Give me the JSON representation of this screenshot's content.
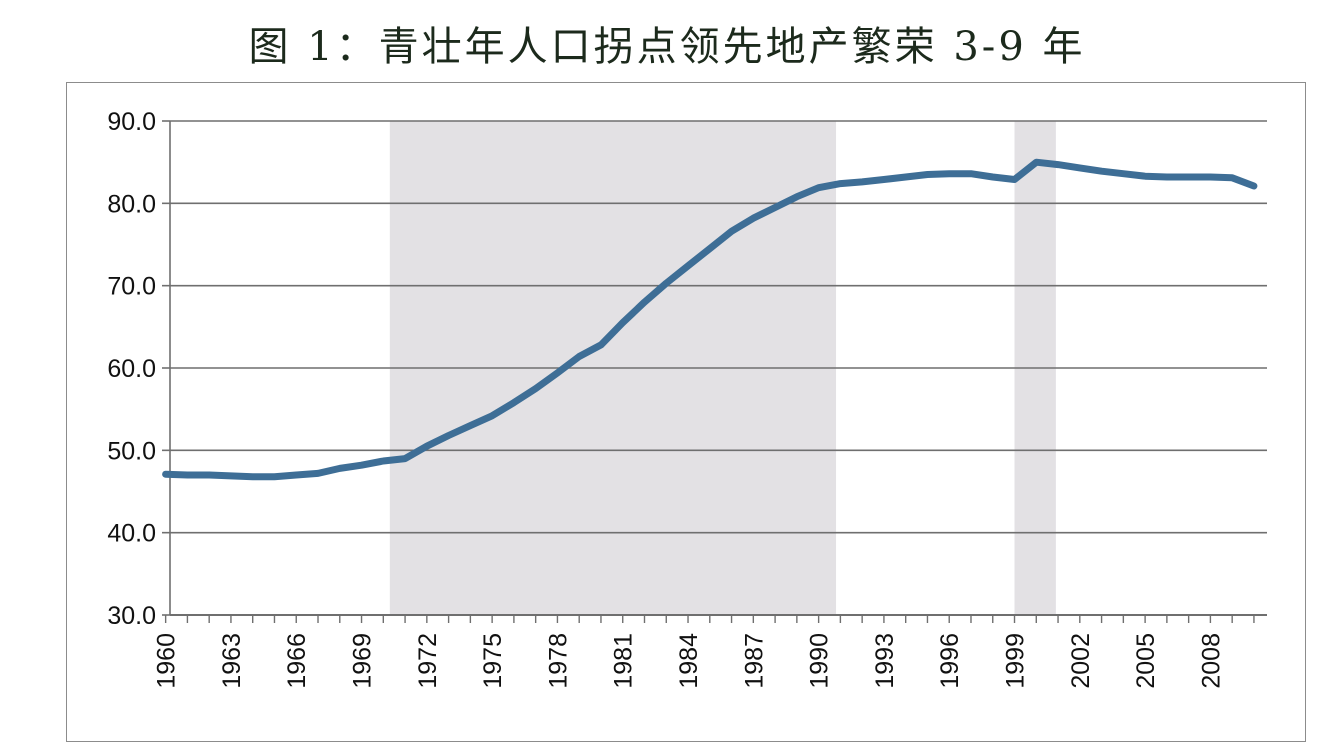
{
  "title": "图 1：青壮年人口拐点领先地产繁荣 3-9 年",
  "chart_data": {
    "type": "line",
    "title": "图 1：青壮年人口拐点领先地产繁荣 3-9 年",
    "xlabel": "",
    "ylabel": "",
    "ylim": [
      30,
      90
    ],
    "xlim": [
      1960,
      2010
    ],
    "yticks": [
      "30.0",
      "40.0",
      "50.0",
      "60.0",
      "70.0",
      "80.0",
      "90.0"
    ],
    "xticks": [
      "1960",
      "1963",
      "1966",
      "1969",
      "1972",
      "1975",
      "1978",
      "1981",
      "1984",
      "1987",
      "1990",
      "1993",
      "1996",
      "1999",
      "2002",
      "2005",
      "2008"
    ],
    "grid": "horizontal",
    "line_color": "#3e6e96",
    "shade_color": "#e3e1e4",
    "shaded_periods": [
      [
        1970.3,
        1990.8
      ],
      [
        1999.0,
        2000.9
      ]
    ],
    "series": [
      {
        "x": [
          1960,
          1961,
          1962,
          1963,
          1964,
          1965,
          1966,
          1967,
          1968,
          1969,
          1970,
          1971,
          1972,
          1973,
          1974,
          1975,
          1976,
          1977,
          1978,
          1979,
          1980,
          1981,
          1982,
          1983,
          1984,
          1985,
          1986,
          1987,
          1988,
          1989,
          1990,
          1991,
          1992,
          1993,
          1994,
          1995,
          1996,
          1997,
          1998,
          1999,
          2000,
          2001,
          2002,
          2003,
          2004,
          2005,
          2006,
          2007,
          2008,
          2009,
          2010
        ],
        "values": [
          47.1,
          47.0,
          47.0,
          46.9,
          46.8,
          46.8,
          47.0,
          47.2,
          47.8,
          48.2,
          48.7,
          49.0,
          50.5,
          51.8,
          53.0,
          54.2,
          55.8,
          57.5,
          59.4,
          61.4,
          62.8,
          65.5,
          68.0,
          70.3,
          72.4,
          74.5,
          76.6,
          78.2,
          79.5,
          80.8,
          81.9,
          82.4,
          82.6,
          82.9,
          83.2,
          83.5,
          83.6,
          83.6,
          83.2,
          82.9,
          85.0,
          84.7,
          84.3,
          83.9,
          83.6,
          83.3,
          83.2,
          83.2,
          83.2,
          83.1,
          82.1
        ]
      }
    ]
  }
}
